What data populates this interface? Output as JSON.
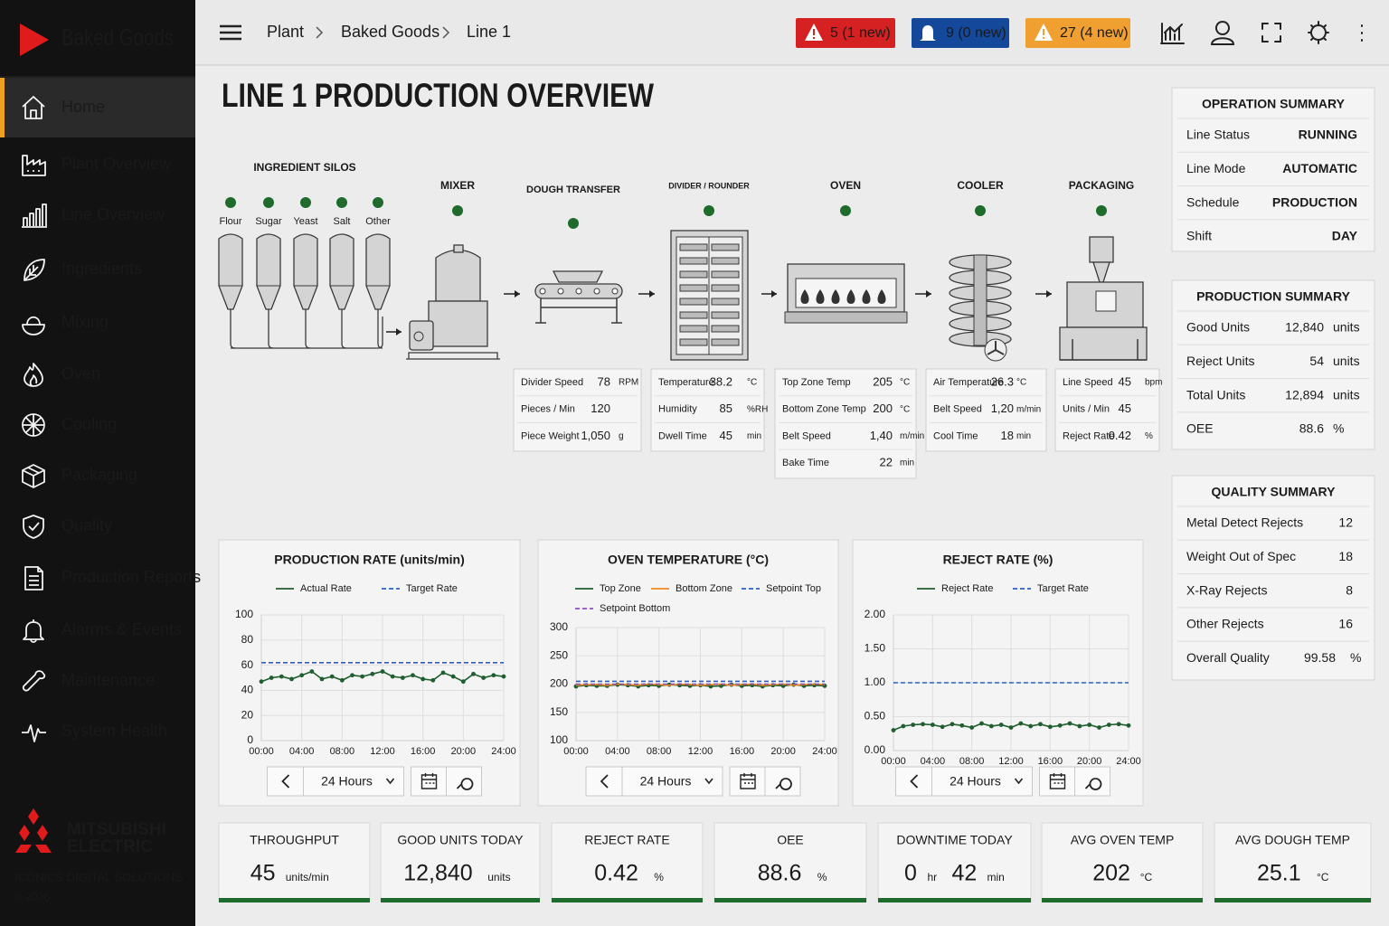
{
  "sidebar": {
    "brand": "Baked Goods",
    "nav": [
      "Home",
      "Plant Overview",
      "Line Overview",
      "Ingredients",
      "Mixing",
      "Oven",
      "Cooling",
      "Packaging",
      "Quality",
      "Production Reports",
      "Alarms & Events",
      "Maintenance",
      "System Health"
    ],
    "logo": [
      "MITSUBISHI",
      "ELECTRIC"
    ],
    "tagline": "ICONICS DIGITAL SOLUTIONS",
    "copyright": "© 2026"
  },
  "header": {
    "breadcrumb": [
      "Plant",
      "Baked Goods",
      "Line 1"
    ],
    "alarms": [
      "5 (1 new)",
      "9 (0 new)",
      "27 (4 new)"
    ]
  },
  "title": "LINE 1 PRODUCTION OVERVIEW",
  "process": {
    "silos_title": "INGREDIENT SILOS",
    "silos": [
      "Flour",
      "Sugar",
      "Yeast",
      "Salt",
      "Other"
    ],
    "stages": [
      "MIXER",
      "DOUGH TRANSFER",
      "DIVIDER / ROUNDER",
      "OVEN",
      "COOLER",
      "PACKAGING"
    ],
    "tables": [
      [
        [
          "Divider Speed",
          "78",
          "RPM"
        ],
        [
          "Pieces / Min",
          "120",
          ""
        ],
        [
          "Piece Weight",
          "1,050",
          "g"
        ]
      ],
      [
        [
          "Temperature",
          "38.2",
          "°C"
        ],
        [
          "Humidity",
          "85",
          "%RH"
        ],
        [
          "Dwell Time",
          "45",
          "min"
        ]
      ],
      [
        [
          "Top Zone Temp",
          "205",
          "°C"
        ],
        [
          "Bottom Zone Temp",
          "200",
          "°C"
        ],
        [
          "Belt Speed",
          "1,40",
          "m/min"
        ],
        [
          "Bake Time",
          "22",
          "min"
        ]
      ],
      [
        [
          "Air Temperature",
          "26.3",
          "°C"
        ],
        [
          "Belt Speed",
          "1,20",
          "m/min"
        ],
        [
          "Cool Time",
          "18",
          "min"
        ]
      ],
      [
        [
          "Line Speed",
          "45",
          "bpm"
        ],
        [
          "Units / Min",
          "45",
          ""
        ],
        [
          "Reject Rate",
          "0.42",
          "%"
        ]
      ]
    ]
  },
  "summaries": [
    {
      "title": "OPERATION SUMMARY",
      "rows": [
        [
          "Line Status",
          "RUNNING",
          ""
        ],
        [
          "Line Mode",
          "AUTOMATIC",
          ""
        ],
        [
          "Schedule",
          "PRODUCTION",
          ""
        ],
        [
          "Shift",
          "DAY",
          ""
        ]
      ]
    },
    {
      "title": "PRODUCTION SUMMARY",
      "rows": [
        [
          "Good Units",
          "12,840",
          "units"
        ],
        [
          "Reject Units",
          "54",
          "units"
        ],
        [
          "Total Units",
          "12,894",
          "units"
        ],
        [
          "OEE",
          "88.6",
          "%"
        ]
      ]
    },
    {
      "title": "QUALITY SUMMARY",
      "rows": [
        [
          "Metal Detect Rejects",
          "12",
          ""
        ],
        [
          "Weight Out of Spec",
          "18",
          ""
        ],
        [
          "X-Ray Rejects",
          "8",
          ""
        ],
        [
          "Other Rejects",
          "16",
          ""
        ],
        [
          "Overall Quality",
          "99.58",
          "%"
        ]
      ]
    }
  ],
  "chart_data": [
    {
      "type": "line",
      "title": "PRODUCTION RATE (units/min)",
      "control": "24 Hours",
      "grid": true,
      "x": [
        0,
        1,
        2,
        3,
        4,
        5,
        6,
        7,
        8,
        9,
        10,
        11,
        12,
        13,
        14,
        15,
        16,
        17,
        18,
        19,
        20,
        21,
        22,
        23,
        24
      ],
      "xlim": [
        0,
        24
      ],
      "xticks": [
        {
          "value": 0,
          "label": "00:00"
        },
        {
          "value": 4,
          "label": "04:00"
        },
        {
          "value": 8,
          "label": "08:00"
        },
        {
          "value": 12,
          "label": "12:00"
        },
        {
          "value": 16,
          "label": "16:00"
        },
        {
          "value": 20,
          "label": "20:00"
        },
        {
          "value": 24,
          "label": "24:00"
        }
      ],
      "ylim": [
        0,
        100
      ],
      "yticks": [
        0,
        20,
        40,
        60,
        80,
        100
      ],
      "series": [
        {
          "name": "Actual Rate",
          "color": "#1f5e2e",
          "style": "solid",
          "markers": true,
          "values": [
            47,
            50,
            51,
            49,
            52,
            55,
            49,
            51,
            48,
            52,
            51,
            53,
            55,
            51,
            50,
            52,
            49,
            48,
            54,
            51,
            47,
            53,
            50,
            52,
            51
          ]
        },
        {
          "name": "Target Rate",
          "color": "#2f5fc4",
          "style": "dashed",
          "markers": false,
          "values": [
            62,
            62,
            62,
            62,
            62,
            62,
            62,
            62,
            62,
            62,
            62,
            62,
            62,
            62,
            62,
            62,
            62,
            62,
            62,
            62,
            62,
            62,
            62,
            62,
            62
          ]
        }
      ]
    },
    {
      "type": "line",
      "title": "OVEN TEMPERATURE (°C)",
      "control": "24 Hours",
      "grid": true,
      "x": [
        0,
        1,
        2,
        3,
        4,
        5,
        6,
        7,
        8,
        9,
        10,
        11,
        12,
        13,
        14,
        15,
        16,
        17,
        18,
        19,
        20,
        21,
        22,
        23,
        24
      ],
      "xlim": [
        0,
        24
      ],
      "xticks": [
        {
          "value": 0,
          "label": "00:00"
        },
        {
          "value": 4,
          "label": "04:00"
        },
        {
          "value": 8,
          "label": "08:00"
        },
        {
          "value": 12,
          "label": "12:00"
        },
        {
          "value": 16,
          "label": "16:00"
        },
        {
          "value": 20,
          "label": "20:00"
        },
        {
          "value": 24,
          "label": "24:00"
        }
      ],
      "ylim": [
        100,
        300
      ],
      "yticks": [
        100,
        150,
        200,
        250,
        300
      ],
      "series": [
        {
          "name": "Top Zone",
          "color": "#1f5e2e",
          "style": "solid",
          "markers": true,
          "values": [
            196,
            198,
            197,
            197,
            199,
            198,
            196,
            198,
            197,
            199,
            198,
            197,
            198,
            196,
            197,
            199,
            197,
            198,
            196,
            198,
            197,
            199,
            197,
            198,
            197
          ]
        },
        {
          "name": "Bottom Zone",
          "color": "#f08a1c",
          "style": "solid",
          "markers": false,
          "values": [
            198,
            199,
            199,
            198,
            200,
            199,
            198,
            200,
            199,
            198,
            200,
            199,
            198,
            199,
            200,
            198,
            199,
            200,
            198,
            199,
            200,
            198,
            199,
            200,
            199
          ]
        },
        {
          "name": "Setpoint Top",
          "color": "#2f5fc4",
          "style": "dashed",
          "markers": false,
          "values": [
            205,
            205,
            205,
            205,
            205,
            205,
            205,
            205,
            205,
            205,
            205,
            205,
            205,
            205,
            205,
            205,
            205,
            205,
            205,
            205,
            205,
            205,
            205,
            205,
            205
          ]
        },
        {
          "name": "Setpoint Bottom",
          "color": "#8a4fc4",
          "style": "dashed",
          "markers": false,
          "values": [
            200,
            200,
            200,
            200,
            200,
            200,
            200,
            200,
            200,
            200,
            200,
            200,
            200,
            200,
            200,
            200,
            200,
            200,
            200,
            200,
            200,
            200,
            200,
            200,
            200
          ]
        }
      ]
    },
    {
      "type": "line",
      "title": "REJECT RATE (%)",
      "control": "24 Hours",
      "grid": true,
      "x": [
        0,
        1,
        2,
        3,
        4,
        5,
        6,
        7,
        8,
        9,
        10,
        11,
        12,
        13,
        14,
        15,
        16,
        17,
        18,
        19,
        20,
        21,
        22,
        23,
        24
      ],
      "xlim": [
        0,
        24
      ],
      "xticks": [
        {
          "value": 0,
          "label": "00:00"
        },
        {
          "value": 4,
          "label": "04:00"
        },
        {
          "value": 8,
          "label": "08:00"
        },
        {
          "value": 12,
          "label": "12:00"
        },
        {
          "value": 16,
          "label": "16:00"
        },
        {
          "value": 20,
          "label": "20:00"
        },
        {
          "value": 24,
          "label": "24:00"
        }
      ],
      "ylim": [
        0,
        2
      ],
      "yticks": [
        {
          "value": 0,
          "label": "0.00"
        },
        {
          "value": 0.5,
          "label": "0.50"
        },
        {
          "value": 1,
          "label": "1.00"
        },
        {
          "value": 1.5,
          "label": "1.50"
        },
        {
          "value": 2,
          "label": "2.00"
        }
      ],
      "series": [
        {
          "name": "Reject Rate",
          "color": "#1f5e2e",
          "style": "solid",
          "markers": true,
          "values": [
            0.3,
            0.36,
            0.38,
            0.39,
            0.38,
            0.35,
            0.39,
            0.37,
            0.34,
            0.4,
            0.36,
            0.38,
            0.34,
            0.4,
            0.36,
            0.39,
            0.35,
            0.37,
            0.4,
            0.36,
            0.38,
            0.34,
            0.38,
            0.39,
            0.37
          ]
        },
        {
          "name": "Target Rate",
          "color": "#2f5fc4",
          "style": "dashed",
          "markers": false,
          "values": [
            1,
            1,
            1,
            1,
            1,
            1,
            1,
            1,
            1,
            1,
            1,
            1,
            1,
            1,
            1,
            1,
            1,
            1,
            1,
            1,
            1,
            1,
            1,
            1,
            1
          ]
        }
      ]
    }
  ],
  "kpis": [
    {
      "label": "THROUGHPUT",
      "parts": [
        [
          "45",
          "units/min"
        ]
      ]
    },
    {
      "label": "GOOD UNITS TODAY",
      "parts": [
        [
          "12,840",
          "units"
        ]
      ]
    },
    {
      "label": "REJECT RATE",
      "parts": [
        [
          "0.42",
          "%"
        ]
      ]
    },
    {
      "label": "OEE",
      "parts": [
        [
          "88.6",
          "%"
        ]
      ]
    },
    {
      "label": "DOWNTIME TODAY",
      "parts": [
        [
          "0",
          "hr"
        ],
        [
          "42",
          "min"
        ]
      ]
    },
    {
      "label": "AVG OVEN TEMP",
      "parts": [
        [
          "202",
          "°C"
        ]
      ]
    },
    {
      "label": "AVG DOUGH TEMP",
      "parts": [
        [
          "25.1",
          "°C"
        ]
      ]
    }
  ]
}
